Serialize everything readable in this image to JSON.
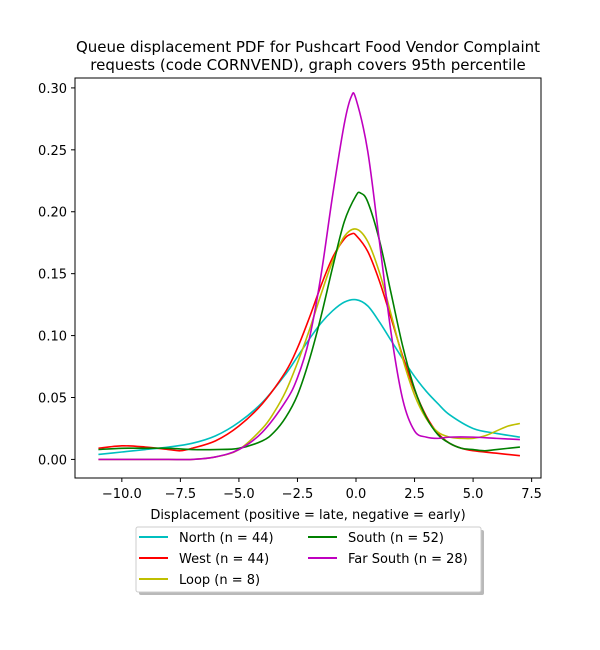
{
  "chart_data": {
    "type": "line",
    "title_lines": [
      "Queue displacement PDF for Pushcart Food Vendor Complaint",
      "requests (code CORNVEND), graph covers 95th percentile"
    ],
    "xlabel": "Displacement (positive = late, negative = early)",
    "ylabel": "",
    "xlim": [
      -12.0,
      7.9
    ],
    "ylim": [
      -0.015,
      0.308
    ],
    "xticks": [
      -10.0,
      -7.5,
      -5.0,
      -2.5,
      0.0,
      2.5,
      5.0,
      7.5
    ],
    "xtick_labels": [
      "−10.0",
      "−7.5",
      "−5.0",
      "−2.5",
      "0.0",
      "2.5",
      "5.0",
      "7.5"
    ],
    "yticks": [
      0.0,
      0.05,
      0.1,
      0.15,
      0.2,
      0.25,
      0.3
    ],
    "ytick_labels": [
      "0.00",
      "0.05",
      "0.10",
      "0.15",
      "0.20",
      "0.25",
      "0.30"
    ],
    "grid": false,
    "legend_position": "bottom-center, outside plot, two columns",
    "series": [
      {
        "name": "North (n = 44)",
        "color": "#00bfbf",
        "x": [
          -11.0,
          -10.0,
          -9.0,
          -8.0,
          -7.0,
          -6.0,
          -5.0,
          -4.0,
          -3.0,
          -2.5,
          -2.0,
          -1.5,
          -1.0,
          -0.5,
          0.0,
          0.5,
          1.0,
          1.5,
          2.0,
          2.5,
          3.0,
          3.5,
          4.0,
          5.0,
          6.0,
          7.0
        ],
        "y": [
          0.004,
          0.006,
          0.008,
          0.01,
          0.013,
          0.019,
          0.03,
          0.046,
          0.069,
          0.083,
          0.097,
          0.11,
          0.12,
          0.127,
          0.129,
          0.124,
          0.111,
          0.096,
          0.081,
          0.067,
          0.055,
          0.045,
          0.036,
          0.025,
          0.021,
          0.018
        ]
      },
      {
        "name": "West (n = 44)",
        "color": "#ff0000",
        "x": [
          -11.0,
          -10.0,
          -9.0,
          -8.0,
          -7.5,
          -7.0,
          -6.0,
          -5.0,
          -4.0,
          -3.0,
          -2.5,
          -2.0,
          -1.5,
          -1.0,
          -0.5,
          -0.2,
          0.0,
          0.5,
          1.0,
          1.5,
          2.0,
          2.5,
          3.0,
          3.5,
          4.0,
          4.5,
          5.0,
          6.0,
          7.0
        ],
        "y": [
          0.009,
          0.011,
          0.01,
          0.008,
          0.007,
          0.009,
          0.015,
          0.027,
          0.045,
          0.071,
          0.09,
          0.114,
          0.14,
          0.163,
          0.178,
          0.182,
          0.181,
          0.168,
          0.144,
          0.114,
          0.083,
          0.056,
          0.035,
          0.021,
          0.013,
          0.009,
          0.007,
          0.005,
          0.003
        ]
      },
      {
        "name": "Loop (n = 8)",
        "color": "#bfbf00",
        "x": [
          -11.0,
          -10.0,
          -9.0,
          -8.0,
          -7.0,
          -6.0,
          -5.0,
          -4.0,
          -3.5,
          -3.0,
          -2.5,
          -2.0,
          -1.5,
          -1.0,
          -0.5,
          0.0,
          0.5,
          1.0,
          1.5,
          2.0,
          2.5,
          3.0,
          3.5,
          4.0,
          4.5,
          5.0,
          5.5,
          6.0,
          6.5,
          7.0
        ],
        "y": [
          0.0,
          0.0,
          0.0,
          0.0,
          0.0,
          0.002,
          0.008,
          0.025,
          0.038,
          0.055,
          0.078,
          0.104,
          0.133,
          0.16,
          0.18,
          0.186,
          0.176,
          0.151,
          0.117,
          0.081,
          0.052,
          0.033,
          0.022,
          0.018,
          0.017,
          0.017,
          0.019,
          0.023,
          0.027,
          0.029
        ]
      },
      {
        "name": "South (n = 52)",
        "color": "#008000",
        "x": [
          -11.0,
          -10.0,
          -9.0,
          -8.0,
          -7.0,
          -6.0,
          -5.0,
          -4.0,
          -3.5,
          -3.0,
          -2.5,
          -2.0,
          -1.5,
          -1.0,
          -0.5,
          0.0,
          0.2,
          0.5,
          1.0,
          1.5,
          2.0,
          2.5,
          3.0,
          3.5,
          4.0,
          4.5,
          5.0,
          5.5,
          6.0,
          7.0
        ],
        "y": [
          0.008,
          0.009,
          0.009,
          0.009,
          0.008,
          0.008,
          0.009,
          0.015,
          0.022,
          0.034,
          0.052,
          0.08,
          0.115,
          0.155,
          0.192,
          0.213,
          0.215,
          0.208,
          0.177,
          0.134,
          0.091,
          0.057,
          0.034,
          0.02,
          0.013,
          0.009,
          0.008,
          0.007,
          0.008,
          0.01
        ]
      },
      {
        "name": "Far South (n = 28)",
        "color": "#bf00bf",
        "x": [
          -11.0,
          -10.0,
          -9.0,
          -8.0,
          -7.0,
          -6.0,
          -5.0,
          -4.0,
          -3.0,
          -2.5,
          -2.0,
          -1.5,
          -1.0,
          -0.5,
          -0.2,
          0.0,
          0.5,
          1.0,
          1.5,
          2.0,
          2.5,
          3.0,
          3.5,
          4.0,
          5.0,
          6.0,
          7.0
        ],
        "y": [
          0.0,
          0.0,
          0.0,
          0.0,
          0.0,
          0.002,
          0.008,
          0.022,
          0.047,
          0.066,
          0.097,
          0.148,
          0.213,
          0.271,
          0.293,
          0.291,
          0.249,
          0.176,
          0.102,
          0.048,
          0.023,
          0.018,
          0.017,
          0.018,
          0.018,
          0.017,
          0.016
        ]
      }
    ]
  }
}
